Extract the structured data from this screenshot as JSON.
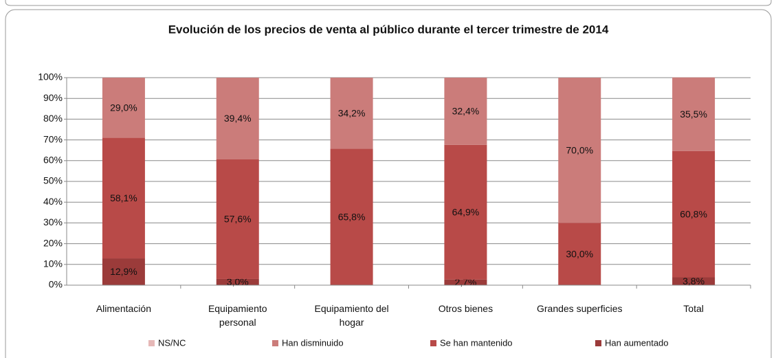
{
  "chart_data": {
    "type": "stacked_bar",
    "title": "Evolución de los precios de venta al público durante el tercer trimestre de 2014",
    "categories": [
      "Alimentación",
      "Equipamiento personal",
      "Equipamiento del hogar",
      "Otros bienes",
      "Grandes superficies",
      "Total"
    ],
    "series": [
      {
        "name": "Han aumentado",
        "color": "#9b3b3a",
        "values": [
          12.9,
          3.0,
          0,
          2.7,
          0,
          3.8
        ],
        "value_labels": [
          "12,9%",
          "3,0%",
          null,
          "2,7%",
          null,
          "3,8%"
        ]
      },
      {
        "name": "Se han mantenido",
        "color": "#b84a48",
        "values": [
          58.1,
          57.6,
          65.8,
          64.9,
          30.0,
          60.8
        ],
        "value_labels": [
          "58,1%",
          "57,6%",
          "65,8%",
          "64,9%",
          "30,0%",
          "60,8%"
        ]
      },
      {
        "name": "Han disminuido",
        "color": "#cb7c7a",
        "values": [
          29.0,
          39.4,
          34.2,
          32.4,
          70.0,
          35.5
        ],
        "value_labels": [
          "29,0%",
          "39,4%",
          "34,2%",
          "32,4%",
          "70,0%",
          "35,5%"
        ]
      },
      {
        "name": "NS/NC",
        "color": "#e6b8b7",
        "values": [
          0,
          0,
          0,
          0,
          0,
          0
        ],
        "value_labels": [
          null,
          null,
          null,
          null,
          null,
          null
        ]
      }
    ],
    "legend_order": [
      3,
      2,
      1,
      0
    ],
    "ylim": [
      0,
      100
    ],
    "yticks": [
      {
        "value": 0,
        "label": "0%"
      },
      {
        "value": 10,
        "label": "10%"
      },
      {
        "value": 20,
        "label": "20%"
      },
      {
        "value": 30,
        "label": "30%"
      },
      {
        "value": 40,
        "label": "40%"
      },
      {
        "value": 50,
        "label": "50%"
      },
      {
        "value": 60,
        "label": "60%"
      },
      {
        "value": 70,
        "label": "70%"
      },
      {
        "value": 80,
        "label": "80%"
      },
      {
        "value": 90,
        "label": "90%"
      },
      {
        "value": 100,
        "label": "100%"
      }
    ],
    "grid": true,
    "legend": "bottom"
  }
}
